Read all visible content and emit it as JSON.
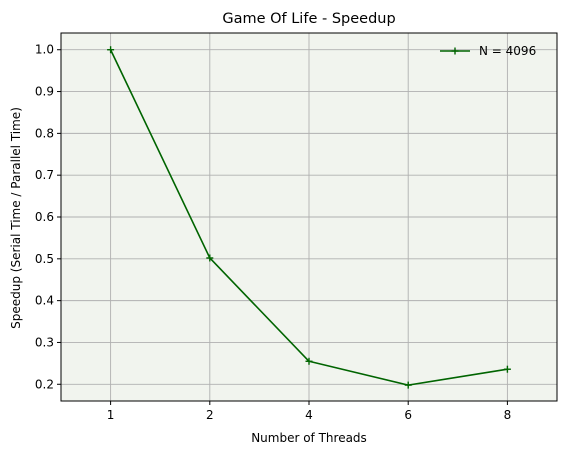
{
  "chart_data": {
    "type": "line",
    "title": "Game Of Life - Speedup",
    "xlabel": "Number of Threads",
    "ylabel": "Speedup (Serial Time / Parallel Time)",
    "categories": [
      "1",
      "2",
      "4",
      "6",
      "8"
    ],
    "x_scale": "categorical",
    "ylim": [
      0.16,
      1.04
    ],
    "yticks": [
      "0.2",
      "0.3",
      "0.4",
      "0.5",
      "0.6",
      "0.7",
      "0.8",
      "0.9",
      "1.0"
    ],
    "grid": true,
    "legend_position": "upper right",
    "series": [
      {
        "name": "N = 4096",
        "values": [
          1.0,
          0.502,
          0.255,
          0.198,
          0.236
        ],
        "color": "#006400",
        "marker": "plus"
      }
    ],
    "colors": {
      "plot_background": "#f1f4ee",
      "grid": "#b0b0b0",
      "line": "#006400"
    }
  }
}
